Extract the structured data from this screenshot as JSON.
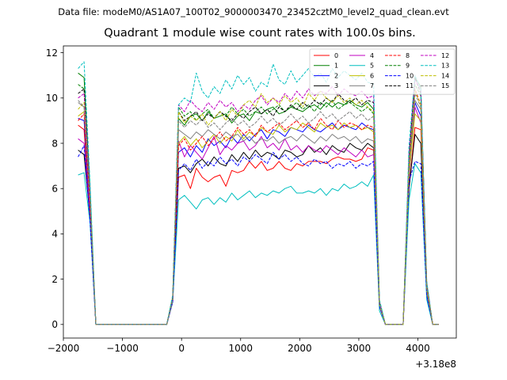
{
  "suptitle": "Data file: modeM0/AS1A07_100T02_9000003470_23452cztM0_level2_quad_clean.evt",
  "chart_data": {
    "type": "line",
    "title": "Quadrant 1 module wise count rates with 100.0s bins.",
    "xlabel": "",
    "ylabel": "",
    "x_offset_label": "+3.18e8",
    "xlim": [
      -2000,
      4650
    ],
    "ylim": [
      -0.6,
      12.3
    ],
    "xticks": [
      -2000,
      -1000,
      0,
      1000,
      2000,
      3000,
      4000
    ],
    "xtick_labels": [
      "−2000",
      "−1000",
      "0",
      "1000",
      "2000",
      "3000",
      "4000"
    ],
    "yticks": [
      0,
      2,
      4,
      6,
      8,
      10,
      12
    ],
    "ytick_labels": [
      "0",
      "2",
      "4",
      "6",
      "8",
      "10",
      "12"
    ],
    "grid": false,
    "legend": {
      "placement": "top-right",
      "columns": 4
    },
    "x": [
      -1750,
      -1650,
      -1550,
      -1450,
      -1350,
      -1250,
      -1150,
      -1050,
      -950,
      -850,
      -750,
      -650,
      -550,
      -450,
      -350,
      -250,
      -150,
      -50,
      50,
      150,
      250,
      350,
      450,
      550,
      650,
      750,
      850,
      950,
      1050,
      1150,
      1250,
      1350,
      1450,
      1550,
      1650,
      1750,
      1850,
      1950,
      2050,
      2150,
      2250,
      2350,
      2450,
      2550,
      2650,
      2750,
      2850,
      2950,
      3050,
      3150,
      3250,
      3350,
      3450,
      3550,
      3650,
      3750,
      3850,
      3950,
      4050,
      4150,
      4250,
      4350
    ],
    "series": [
      {
        "name": "0",
        "color": "#ff0000",
        "dash": "solid",
        "values": [
          8.8,
          8.6,
          5.0,
          0.0,
          0.0,
          0.0,
          0.0,
          0.0,
          0.0,
          0.0,
          0.0,
          0.0,
          0.0,
          0.0,
          0.0,
          0.0,
          1.0,
          6.5,
          6.6,
          6.0,
          6.9,
          6.5,
          6.3,
          6.5,
          6.6,
          6.1,
          6.8,
          6.7,
          6.8,
          7.2,
          6.9,
          7.2,
          6.8,
          6.9,
          7.2,
          6.9,
          6.8,
          7.1,
          7.0,
          7.2,
          7.2,
          7.2,
          7.1,
          7.3,
          7.4,
          7.3,
          7.3,
          7.2,
          7.3,
          7.8,
          7.7,
          0.8,
          0.0,
          0.0,
          0.0,
          0.0,
          6.0,
          8.7,
          8.6,
          1.4,
          0.0,
          0.0
        ]
      },
      {
        "name": "1",
        "color": "#008000",
        "dash": "solid",
        "values": [
          11.1,
          10.9,
          6.0,
          0.0,
          0.0,
          0.0,
          0.0,
          0.0,
          0.0,
          0.0,
          0.0,
          0.0,
          0.0,
          0.0,
          0.0,
          0.0,
          1.2,
          9.1,
          8.8,
          9.2,
          9.3,
          9.0,
          9.4,
          9.1,
          9.2,
          9.3,
          8.9,
          9.2,
          9.3,
          9.0,
          9.4,
          9.3,
          9.5,
          9.6,
          9.3,
          9.4,
          9.6,
          9.5,
          9.4,
          9.6,
          9.7,
          9.5,
          9.8,
          9.6,
          9.8,
          9.7,
          9.9,
          9.7,
          9.6,
          9.8,
          9.5,
          1.0,
          0.0,
          0.0,
          0.0,
          0.0,
          7.2,
          10.9,
          10.5,
          1.6,
          0.0,
          0.0
        ]
      },
      {
        "name": "2",
        "color": "#0000ff",
        "dash": "solid",
        "values": [
          9.1,
          9.0,
          5.2,
          0.0,
          0.0,
          0.0,
          0.0,
          0.0,
          0.0,
          0.0,
          0.0,
          0.0,
          0.0,
          0.0,
          0.0,
          0.0,
          1.1,
          7.6,
          7.8,
          7.4,
          7.9,
          7.6,
          8.2,
          7.9,
          8.1,
          7.8,
          8.3,
          8.0,
          8.4,
          8.1,
          8.4,
          8.6,
          8.2,
          8.6,
          8.5,
          8.3,
          8.7,
          8.6,
          8.5,
          8.8,
          8.6,
          8.5,
          8.7,
          8.9,
          8.6,
          8.8,
          8.7,
          8.6,
          8.9,
          8.7,
          8.6,
          0.9,
          0.0,
          0.0,
          0.0,
          0.0,
          6.4,
          9.8,
          9.2,
          1.2,
          0.0,
          0.0
        ]
      },
      {
        "name": "3",
        "color": "#000000",
        "dash": "solid",
        "values": [
          7.7,
          7.5,
          4.8,
          0.0,
          0.0,
          0.0,
          0.0,
          0.0,
          0.0,
          0.0,
          0.0,
          0.0,
          0.0,
          0.0,
          0.0,
          0.0,
          1.0,
          6.9,
          7.0,
          6.7,
          7.1,
          7.3,
          7.0,
          7.4,
          7.1,
          7.0,
          7.5,
          7.2,
          7.6,
          7.3,
          7.7,
          7.4,
          7.6,
          7.5,
          7.3,
          7.7,
          7.6,
          7.4,
          7.5,
          7.9,
          7.6,
          7.8,
          7.5,
          7.9,
          7.7,
          7.6,
          8.0,
          7.8,
          7.7,
          8.0,
          7.8,
          0.8,
          0.0,
          0.0,
          0.0,
          0.0,
          6.0,
          8.4,
          8.0,
          1.5,
          0.0,
          0.0
        ]
      },
      {
        "name": "4",
        "color": "#c000c0",
        "dash": "solid",
        "values": [
          8.2,
          8.0,
          5.0,
          0.0,
          0.0,
          0.0,
          0.0,
          0.0,
          0.0,
          0.0,
          0.0,
          0.0,
          0.0,
          0.0,
          0.0,
          0.0,
          1.1,
          8.1,
          7.4,
          7.9,
          7.6,
          7.3,
          7.8,
          8.3,
          7.5,
          7.9,
          7.7,
          8.0,
          8.1,
          7.7,
          7.9,
          8.3,
          7.8,
          8.0,
          7.7,
          8.2,
          7.7,
          7.9,
          7.6,
          7.9,
          7.7,
          7.6,
          7.9,
          7.7,
          7.5,
          7.8,
          7.6,
          7.4,
          7.7,
          7.4,
          7.5,
          0.8,
          0.0,
          0.0,
          0.0,
          0.0,
          6.5,
          9.6,
          8.9,
          1.4,
          0.0,
          0.0
        ]
      },
      {
        "name": "5",
        "color": "#00bfbf",
        "dash": "solid",
        "values": [
          6.6,
          6.7,
          4.5,
          0.0,
          0.0,
          0.0,
          0.0,
          0.0,
          0.0,
          0.0,
          0.0,
          0.0,
          0.0,
          0.0,
          0.0,
          0.0,
          1.0,
          5.5,
          5.7,
          5.4,
          5.1,
          5.5,
          5.6,
          5.3,
          5.6,
          5.4,
          5.8,
          5.5,
          5.7,
          5.9,
          5.6,
          5.8,
          5.7,
          5.9,
          5.8,
          6.0,
          6.1,
          5.8,
          5.8,
          5.9,
          5.8,
          6.0,
          5.7,
          6.0,
          5.9,
          6.2,
          6.0,
          6.1,
          6.3,
          6.1,
          6.6,
          0.6,
          0.0,
          0.0,
          0.0,
          0.0,
          5.5,
          7.1,
          6.7,
          1.1,
          0.0,
          0.0
        ]
      },
      {
        "name": "6",
        "color": "#bfbf00",
        "dash": "solid",
        "values": [
          9.2,
          9.4,
          5.4,
          0.0,
          0.0,
          0.0,
          0.0,
          0.0,
          0.0,
          0.0,
          0.0,
          0.0,
          0.0,
          0.0,
          0.0,
          0.0,
          1.2,
          8.0,
          8.3,
          7.9,
          8.2,
          7.8,
          8.1,
          8.4,
          8.0,
          8.3,
          8.1,
          8.6,
          8.2,
          8.5,
          8.3,
          8.7,
          8.5,
          8.4,
          8.8,
          8.5,
          8.7,
          8.6,
          8.9,
          8.7,
          8.5,
          8.9,
          8.7,
          8.8,
          8.6,
          8.9,
          8.7,
          8.8,
          8.6,
          8.7,
          8.5,
          0.9,
          0.0,
          0.0,
          0.0,
          0.0,
          6.6,
          9.3,
          9.0,
          1.5,
          0.0,
          0.0
        ]
      },
      {
        "name": "7",
        "color": "#808080",
        "dash": "solid",
        "values": [
          9.8,
          9.6,
          5.6,
          0.0,
          0.0,
          0.0,
          0.0,
          0.0,
          0.0,
          0.0,
          0.0,
          0.0,
          0.0,
          0.0,
          0.0,
          0.0,
          1.1,
          8.6,
          8.4,
          8.2,
          8.5,
          8.3,
          8.6,
          8.4,
          8.2,
          8.5,
          8.3,
          8.4,
          8.1,
          8.3,
          8.0,
          8.2,
          8.1,
          8.3,
          8.0,
          8.2,
          8.3,
          8.1,
          8.4,
          8.2,
          8.0,
          8.3,
          8.1,
          8.4,
          8.2,
          8.3,
          8.1,
          8.3,
          8.0,
          8.2,
          8.1,
          0.9,
          0.0,
          0.0,
          0.0,
          0.0,
          6.8,
          9.9,
          9.5,
          1.7,
          0.0,
          0.0
        ]
      },
      {
        "name": "8",
        "color": "#ff0000",
        "dash": "dashed",
        "values": [
          9.0,
          9.3,
          5.3,
          0.0,
          0.0,
          0.0,
          0.0,
          0.0,
          0.0,
          0.0,
          0.0,
          0.0,
          0.0,
          0.0,
          0.0,
          0.0,
          1.1,
          7.9,
          8.2,
          7.7,
          8.0,
          8.3,
          7.9,
          8.2,
          8.5,
          8.1,
          8.3,
          8.7,
          8.4,
          8.6,
          8.3,
          8.8,
          8.5,
          8.7,
          8.9,
          8.6,
          8.8,
          9.0,
          8.7,
          8.9,
          8.6,
          9.1,
          8.8,
          8.6,
          9.0,
          8.7,
          8.9,
          8.8,
          8.6,
          8.8,
          8.7,
          0.9,
          0.0,
          0.0,
          0.0,
          0.0,
          6.9,
          10.4,
          9.7,
          1.6,
          0.0,
          0.0
        ]
      },
      {
        "name": "9",
        "color": "#008000",
        "dash": "dashed",
        "values": [
          10.6,
          10.4,
          5.8,
          0.0,
          0.0,
          0.0,
          0.0,
          0.0,
          0.0,
          0.0,
          0.0,
          0.0,
          0.0,
          0.0,
          0.0,
          0.0,
          1.2,
          9.6,
          9.2,
          9.4,
          9.0,
          9.3,
          9.5,
          9.1,
          9.4,
          9.2,
          9.6,
          9.3,
          9.5,
          9.2,
          9.4,
          9.6,
          9.3,
          9.5,
          9.7,
          9.4,
          9.6,
          9.8,
          9.5,
          9.7,
          9.4,
          9.8,
          9.6,
          9.9,
          9.5,
          9.7,
          9.8,
          9.6,
          9.4,
          9.6,
          9.3,
          1.0,
          0.0,
          0.0,
          0.0,
          0.0,
          7.3,
          10.6,
          10.1,
          1.8,
          0.0,
          0.0
        ]
      },
      {
        "name": "10",
        "color": "#0000ff",
        "dash": "dashed",
        "values": [
          7.4,
          7.9,
          4.6,
          0.0,
          0.0,
          0.0,
          0.0,
          0.0,
          0.0,
          0.0,
          0.0,
          0.0,
          0.0,
          0.0,
          0.0,
          0.0,
          1.0,
          6.8,
          7.1,
          6.8,
          7.3,
          6.9,
          7.2,
          7.0,
          7.4,
          7.1,
          7.3,
          7.0,
          7.4,
          7.2,
          7.5,
          7.3,
          7.1,
          7.6,
          7.3,
          7.5,
          7.2,
          7.4,
          7.1,
          7.0,
          7.3,
          7.1,
          7.2,
          6.9,
          7.1,
          7.0,
          7.2,
          6.9,
          7.1,
          7.0,
          7.2,
          0.8,
          0.0,
          0.0,
          0.0,
          0.0,
          6.3,
          7.2,
          7.1,
          1.3,
          0.0,
          0.0
        ]
      },
      {
        "name": "11",
        "color": "#000000",
        "dash": "dashed",
        "values": [
          10.2,
          10.4,
          5.7,
          0.0,
          0.0,
          0.0,
          0.0,
          0.0,
          0.0,
          0.0,
          0.0,
          0.0,
          0.0,
          0.0,
          0.0,
          0.0,
          1.2,
          9.4,
          9.0,
          9.2,
          9.4,
          9.0,
          9.3,
          9.1,
          9.4,
          9.2,
          9.0,
          9.3,
          9.1,
          9.4,
          9.6,
          9.3,
          9.5,
          9.2,
          9.6,
          9.4,
          9.7,
          9.5,
          9.8,
          9.6,
          9.9,
          9.7,
          10.0,
          9.8,
          10.2,
          9.9,
          9.8,
          10.0,
          9.7,
          9.9,
          9.8,
          1.0,
          0.0,
          0.0,
          0.0,
          0.0,
          7.4,
          10.9,
          10.2,
          1.8,
          0.0,
          0.0
        ]
      },
      {
        "name": "12",
        "color": "#c000c0",
        "dash": "dashed",
        "values": [
          10.0,
          10.2,
          5.8,
          0.0,
          0.0,
          0.0,
          0.0,
          0.0,
          0.0,
          0.0,
          0.0,
          0.0,
          0.0,
          0.0,
          0.0,
          0.0,
          1.2,
          9.7,
          9.4,
          9.9,
          9.6,
          9.4,
          9.8,
          9.5,
          9.9,
          9.6,
          9.8,
          9.4,
          9.7,
          9.5,
          9.9,
          10.1,
          9.7,
          10.0,
          9.8,
          10.2,
          9.9,
          10.3,
          10.0,
          10.4,
          10.1,
          10.3,
          10.2,
          10.5,
          10.1,
          10.4,
          10.2,
          10.1,
          10.3,
          10.0,
          10.1,
          1.0,
          0.0,
          0.0,
          0.0,
          0.0,
          7.5,
          10.8,
          10.4,
          1.7,
          0.0,
          0.0
        ]
      },
      {
        "name": "13",
        "color": "#00bfbf",
        "dash": "dashed",
        "values": [
          11.3,
          11.6,
          6.3,
          0.0,
          0.0,
          0.0,
          0.0,
          0.0,
          0.0,
          0.0,
          0.0,
          0.0,
          0.0,
          0.0,
          0.0,
          0.0,
          1.3,
          9.7,
          10.0,
          9.8,
          11.1,
          10.3,
          10.0,
          10.5,
          10.2,
          10.8,
          10.4,
          11.0,
          10.6,
          10.9,
          10.3,
          10.7,
          10.5,
          11.5,
          10.8,
          10.6,
          11.2,
          10.7,
          11.0,
          11.3,
          10.9,
          11.1,
          10.7,
          11.3,
          10.9,
          11.2,
          11.0,
          10.8,
          11.1,
          10.7,
          10.6,
          1.1,
          0.0,
          0.0,
          0.0,
          0.0,
          7.9,
          11.0,
          10.4,
          1.9,
          0.0,
          0.0
        ]
      },
      {
        "name": "14",
        "color": "#bfbf00",
        "dash": "dashed",
        "values": [
          9.5,
          9.8,
          5.5,
          0.0,
          0.0,
          0.0,
          0.0,
          0.0,
          0.0,
          0.0,
          0.0,
          0.0,
          0.0,
          0.0,
          0.0,
          0.0,
          1.1,
          9.4,
          8.9,
          9.2,
          9.0,
          9.3,
          8.8,
          9.1,
          9.4,
          9.0,
          9.5,
          9.2,
          9.7,
          9.9,
          9.6,
          10.2,
          9.8,
          10.0,
          9.7,
          10.1,
          9.8,
          10.0,
          9.6,
          10.2,
          9.9,
          10.3,
          10.0,
          9.8,
          10.1,
          9.8,
          10.0,
          9.7,
          9.9,
          9.6,
          9.4,
          0.9,
          0.0,
          0.0,
          0.0,
          0.0,
          7.0,
          10.3,
          9.7,
          1.6,
          0.0,
          0.0
        ]
      },
      {
        "name": "15",
        "color": "#808080",
        "dash": "dashed",
        "values": [
          9.9,
          9.6,
          5.6,
          0.0,
          0.0,
          0.0,
          0.0,
          0.0,
          0.0,
          0.0,
          0.0,
          0.0,
          0.0,
          0.0,
          0.0,
          0.0,
          1.1,
          9.0,
          8.7,
          9.0,
          8.8,
          9.1,
          8.7,
          8.9,
          8.6,
          8.9,
          9.1,
          8.8,
          9.0,
          8.7,
          8.9,
          9.2,
          8.9,
          9.1,
          8.8,
          9.0,
          9.3,
          9.0,
          9.2,
          8.9,
          9.1,
          9.4,
          9.1,
          9.3,
          9.0,
          9.2,
          9.4,
          9.1,
          9.3,
          9.0,
          9.2,
          0.9,
          0.0,
          0.0,
          0.0,
          0.0,
          6.9,
          10.2,
          9.6,
          1.7,
          0.0,
          0.0
        ]
      }
    ]
  }
}
